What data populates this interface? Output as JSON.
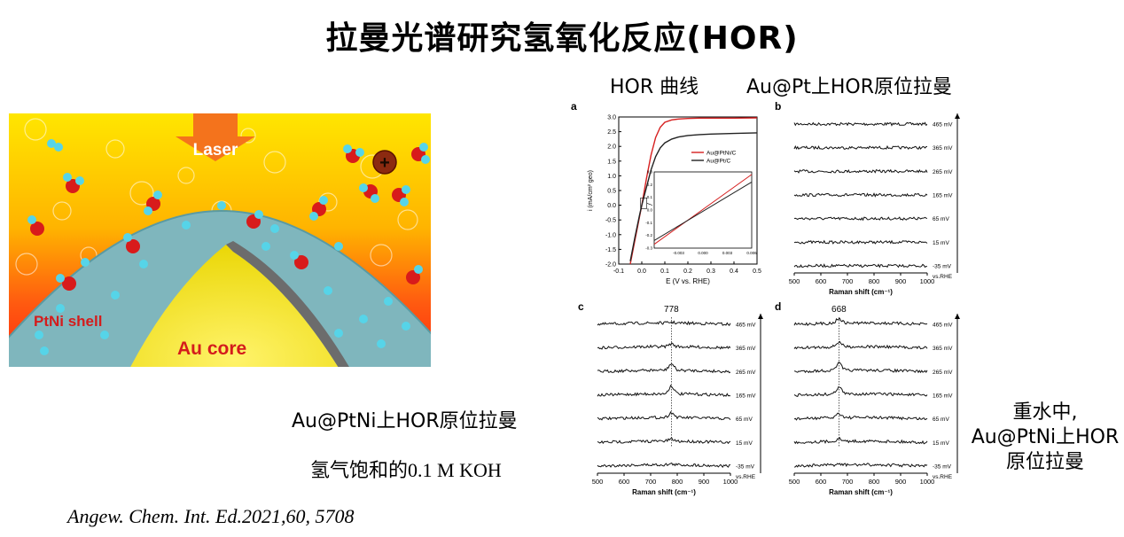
{
  "title": "拉曼光谱研究氢氧化反应(HOR)",
  "captions": {
    "hor_curve": "HOR 曲线",
    "au_pt": "Au@Pt上HOR原位拉曼",
    "au_ptni": "Au@PtNi上HOR原位拉曼",
    "koh_prefix": "氢气饱和的",
    "koh_value": "0.1 M KOH",
    "side_line1": "重水中,",
    "side_line2": "Au@PtNi上HOR",
    "side_line3": "原位拉曼"
  },
  "citation": "Angew. Chem. Int. Ed.2021,60, 5708",
  "illustration": {
    "laser_label": "Laser",
    "shell_label": "PtNi shell",
    "core_label": "Au core",
    "plus_sign": "+"
  },
  "panels": {
    "a_label": "a",
    "b_label": "b",
    "c_label": "c",
    "d_label": "d",
    "a_xlabel": "E (V vs. RHE)",
    "a_ylabel": "i (mA/cm² geo)",
    "raman_xlabel": "Raman shift (cm⁻¹)",
    "vs_rhe": "vs.RHE",
    "c_peak": "778",
    "d_peak": "668"
  },
  "chart_data": [
    {
      "type": "line",
      "panel": "a",
      "xlabel": "E (V vs. RHE)",
      "ylabel": "i (mA/cm² geo)",
      "xlim": [
        -0.1,
        0.5
      ],
      "ylim": [
        -2.0,
        3.0
      ],
      "xticks": [
        "-0.1",
        "0.0",
        "0.1",
        "0.2",
        "0.3",
        "0.4",
        "0.5"
      ],
      "yticks": [
        "-2.0",
        "-1.5",
        "-1.0",
        "-0.5",
        "0.0",
        "0.5",
        "1.0",
        "1.5",
        "2.0",
        "2.5",
        "3.0"
      ],
      "legend": "top-right",
      "series": [
        {
          "name": "Au@PtNi/C",
          "color": "#d62020",
          "x": [
            -0.05,
            -0.03,
            -0.01,
            0.0,
            0.02,
            0.04,
            0.06,
            0.08,
            0.1,
            0.13,
            0.16,
            0.2,
            0.25,
            0.3,
            0.4,
            0.5
          ],
          "y": [
            -2.0,
            -1.2,
            -0.4,
            0.0,
            0.9,
            1.7,
            2.3,
            2.65,
            2.82,
            2.9,
            2.93,
            2.95,
            2.96,
            2.96,
            2.96,
            2.97
          ]
        },
        {
          "name": "Au@Pt/C",
          "color": "#222222",
          "x": [
            -0.05,
            -0.03,
            -0.01,
            0.0,
            0.02,
            0.04,
            0.06,
            0.08,
            0.1,
            0.13,
            0.16,
            0.2,
            0.25,
            0.3,
            0.4,
            0.5
          ],
          "y": [
            -1.9,
            -1.1,
            -0.35,
            0.0,
            0.6,
            1.2,
            1.65,
            1.95,
            2.12,
            2.25,
            2.32,
            2.37,
            2.4,
            2.42,
            2.44,
            2.46
          ]
        }
      ],
      "inset": {
        "xlim": [
          -0.006,
          0.006
        ],
        "ylim": [
          -0.3,
          0.3
        ],
        "xticks": [
          "-0.003",
          "0.000",
          "0.003",
          "0.006"
        ],
        "yticks": [
          "-0.3",
          "-0.2",
          "-0.1",
          "0.0",
          "0.1",
          "0.2",
          "0.3"
        ]
      }
    },
    {
      "type": "line",
      "panel": "b",
      "xlabel": "Raman shift (cm⁻¹)",
      "xticks": [
        "500",
        "600",
        "700",
        "800",
        "900",
        "1000"
      ],
      "potentials": [
        "465 mV",
        "365 mV",
        "265 mV",
        "165 mV",
        "65 mV",
        "15 mV",
        "-35 mV"
      ],
      "peak": null
    },
    {
      "type": "line",
      "panel": "c",
      "xlabel": "Raman shift (cm⁻¹)",
      "xticks": [
        "500",
        "600",
        "700",
        "800",
        "900",
        "1000"
      ],
      "potentials": [
        "465 mV",
        "365 mV",
        "265 mV",
        "165 mV",
        "65 mV",
        "15 mV",
        "-35 mV"
      ],
      "peak": 778,
      "peak_heights": [
        0.1,
        0.35,
        0.8,
        1.0,
        0.6,
        0.25,
        0.1
      ]
    },
    {
      "type": "line",
      "panel": "d",
      "xlabel": "Raman shift (cm⁻¹)",
      "xticks": [
        "500",
        "600",
        "700",
        "800",
        "900",
        "1000"
      ],
      "potentials": [
        "465 mV",
        "365 mV",
        "265 mV",
        "165 mV",
        "65 mV",
        "15 mV",
        "-35 mV"
      ],
      "peak": 668,
      "peak_heights": [
        0.6,
        0.6,
        0.9,
        0.9,
        0.55,
        0.3,
        0.1
      ]
    }
  ],
  "colors": {
    "shell": "#7fb6bd",
    "core": "#f4e62a",
    "background_hot": "#ff2a10",
    "background_warm": "#ffd400",
    "laser": "#f4731c",
    "atom_o": "#d81b1b",
    "atom_h": "#56d4e8"
  }
}
